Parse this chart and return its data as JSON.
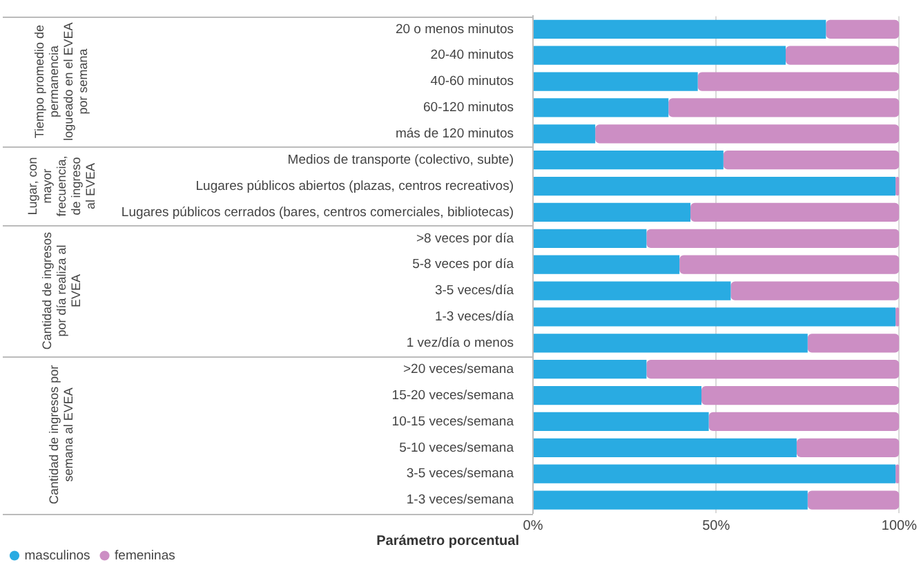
{
  "chart_data": {
    "type": "bar",
    "orientation": "horizontal",
    "stacked": true,
    "categories": [
      "20 o menos minutos",
      "20-40 minutos",
      "40-60 minutos",
      "60-120 minutos",
      "más de 120 minutos",
      "Medios de transporte (colectivo, subte)",
      "Lugares públicos abiertos (plazas, centros recreativos)",
      "Lugares públicos cerrados (bares, centros comerciales, bibliotecas)",
      ">8 veces por día",
      "5-8 veces por día",
      "3-5 veces/día",
      "1-3 veces/día",
      "1 vez/día o menos",
      ">20 veces/semana",
      "15-20 veces/semana",
      "10-15 veces/semana",
      "5-10 veces/semana",
      "3-5 veces/semana",
      "1-3 veces/semana"
    ],
    "series": [
      {
        "name": "masculinos",
        "color": "#29abe2",
        "values": [
          80,
          69,
          45,
          37,
          17,
          52,
          99,
          43,
          31,
          40,
          54,
          99,
          75,
          31,
          46,
          48,
          72,
          99,
          75
        ]
      },
      {
        "name": "femeninas",
        "color": "#cc8ec4",
        "values": [
          20,
          31,
          55,
          63,
          83,
          48,
          1,
          57,
          69,
          60,
          46,
          1,
          25,
          69,
          54,
          52,
          28,
          1,
          25
        ]
      }
    ],
    "xlim": [
      0,
      100
    ],
    "xticks": [
      {
        "value": 0,
        "label": "0%"
      },
      {
        "value": 50,
        "label": "50%"
      },
      {
        "value": 100,
        "label": "100%"
      }
    ],
    "xlabel": "Parámetro porcentual",
    "grid": "x",
    "legend": "bottom left",
    "annotations": [
      "Tiempo promedio de permanencia logueado en el EVEA por semana",
      "Lugar, con mayor frecuencia, de ingreso al EVEA",
      "Cantidad de ingresos por día realiza al EVEA",
      "Cantidad de ingresos por semana al EVEA"
    ]
  }
}
